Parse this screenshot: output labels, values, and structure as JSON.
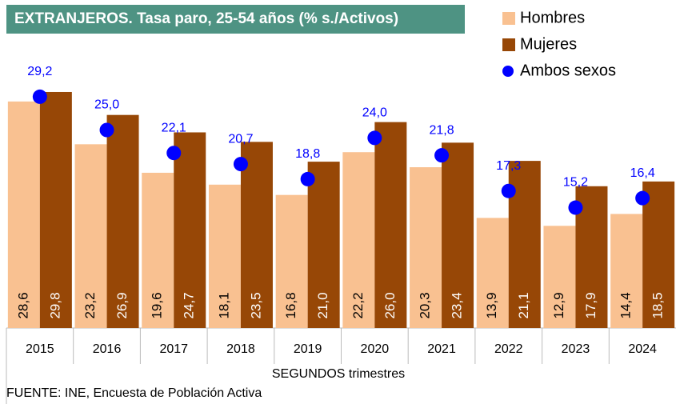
{
  "chart_data": {
    "type": "bar",
    "title": "EXTRANJEROS. Tasa paro, 25-54 años (% s./Activos)",
    "x_label": "SEGUNDOS trimestres",
    "source": "FUENTE: INE, Encuesta de Población Activa",
    "categories": [
      "2015",
      "2016",
      "2017",
      "2018",
      "2019",
      "2020",
      "2021",
      "2022",
      "2023",
      "2024"
    ],
    "series": [
      {
        "name": "Hombres",
        "color": "#f9c191",
        "kind": "bar",
        "values": [
          28.6,
          23.2,
          19.6,
          18.1,
          16.8,
          22.2,
          20.3,
          13.9,
          12.9,
          14.4
        ],
        "value_labels": [
          "28,6",
          "23,2",
          "19,6",
          "18,1",
          "16,8",
          "22,2",
          "20,3",
          "13,9",
          "12,9",
          "14,4"
        ]
      },
      {
        "name": "Mujeres",
        "color": "#974706",
        "kind": "bar",
        "values": [
          29.8,
          26.9,
          24.7,
          23.5,
          21.0,
          26.0,
          23.4,
          21.1,
          17.9,
          18.5
        ],
        "value_labels": [
          "29,8",
          "26,9",
          "24,7",
          "23,5",
          "21,0",
          "26,0",
          "23,4",
          "21,1",
          "17,9",
          "18,5"
        ]
      },
      {
        "name": "Ambos sexos",
        "color": "#0000ff",
        "kind": "dot",
        "values": [
          29.2,
          25.0,
          22.1,
          20.7,
          18.8,
          24.0,
          21.8,
          17.3,
          15.2,
          16.4
        ],
        "value_labels": [
          "29,2",
          "25,0",
          "22,1",
          "20,7",
          "18,8",
          "24,0",
          "21,8",
          "17,3",
          "15,2",
          "16,4"
        ]
      }
    ],
    "ylim": [
      0,
      34
    ],
    "grid": false,
    "legend": "top-right",
    "title_color": "#4e9383"
  }
}
